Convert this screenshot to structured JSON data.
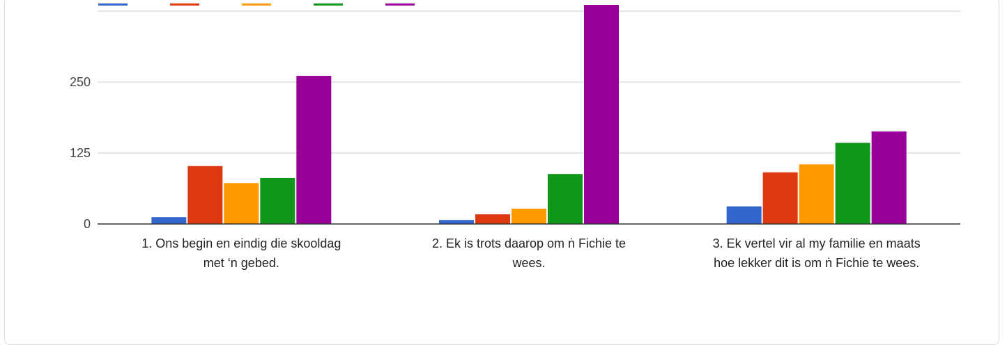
{
  "chart_data": {
    "type": "bar",
    "categories": [
      [
        "1. Ons begin en eindig die skooldag",
        "met ‘n gebed."
      ],
      [
        "2. Ek is trots daarop om ṅ Fichie te",
        "wees."
      ],
      [
        "3. Ek vertel vir al my familie en maats",
        "hoe lekker dit is om ṅ Fichie te wees."
      ]
    ],
    "series": [
      {
        "color": "#3366cc",
        "values": [
          12,
          7,
          31
        ]
      },
      {
        "color": "#dc3912",
        "values": [
          102,
          17,
          91
        ]
      },
      {
        "color": "#ff9900",
        "values": [
          72,
          27,
          105
        ]
      },
      {
        "color": "#109618",
        "values": [
          81,
          88,
          143
        ]
      },
      {
        "color": "#990099",
        "values": [
          261,
          388,
          163
        ]
      }
    ],
    "y_ticks": [
      {
        "value": 0,
        "label": "0"
      },
      {
        "value": 125,
        "label": "125"
      },
      {
        "value": 250,
        "label": "250"
      }
    ],
    "ylim": [
      0,
      375
    ],
    "grid": true,
    "legend": "top"
  }
}
